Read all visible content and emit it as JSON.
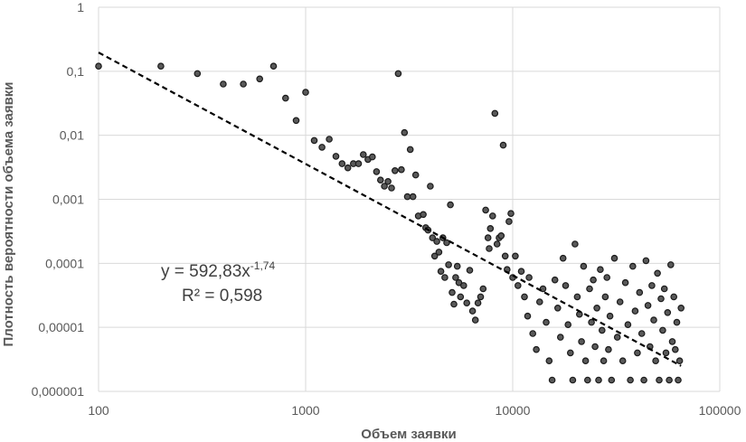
{
  "chart_data": {
    "type": "scatter",
    "xlabel": "Объем заявки",
    "ylabel": "Плотность вероятности объема заявки",
    "x_scale": "log",
    "y_scale": "log",
    "xlim": [
      100,
      100000
    ],
    "ylim": [
      1e-06,
      1
    ],
    "grid": true,
    "x_ticks": [
      "100",
      "1000",
      "10000",
      "100000"
    ],
    "y_ticks": [
      "1",
      "0,1",
      "0,01",
      "0,001",
      "0,0001",
      "0,00001",
      "0,000001"
    ],
    "trendline": {
      "type": "power",
      "a": 592.83,
      "b": -1.74,
      "r2": 0.598,
      "equation_text": "y = 592,83x",
      "exponent_text": "-1,74",
      "r2_text": "R² = 0,598"
    },
    "points": [
      [
        100,
        0.12
      ],
      [
        200,
        0.12
      ],
      [
        300,
        0.092
      ],
      [
        400,
        0.063
      ],
      [
        500,
        0.063
      ],
      [
        600,
        0.076
      ],
      [
        700,
        0.12
      ],
      [
        800,
        0.038
      ],
      [
        900,
        0.017
      ],
      [
        1000,
        0.047
      ],
      [
        1100,
        0.0083
      ],
      [
        1200,
        0.0065
      ],
      [
        1300,
        0.0087
      ],
      [
        1400,
        0.0047
      ],
      [
        1500,
        0.0036
      ],
      [
        1600,
        0.0031
      ],
      [
        1700,
        0.0036
      ],
      [
        1800,
        0.0036
      ],
      [
        1900,
        0.005
      ],
      [
        2000,
        0.0042
      ],
      [
        2100,
        0.0046
      ],
      [
        2200,
        0.0027
      ],
      [
        2300,
        0.002
      ],
      [
        2400,
        0.0016
      ],
      [
        2500,
        0.0019
      ],
      [
        2600,
        0.0015
      ],
      [
        2700,
        0.0028
      ],
      [
        2800,
        0.092
      ],
      [
        2900,
        0.0029
      ],
      [
        3000,
        0.011
      ],
      [
        3100,
        0.0011
      ],
      [
        3200,
        0.006
      ],
      [
        3300,
        0.0011
      ],
      [
        3400,
        0.0024
      ],
      [
        3500,
        0.00055
      ],
      [
        3700,
        0.00058
      ],
      [
        3800,
        0.00036
      ],
      [
        3900,
        0.00033
      ],
      [
        4000,
        0.0016
      ],
      [
        4100,
        0.00025
      ],
      [
        4200,
        0.00013
      ],
      [
        4300,
        0.00022
      ],
      [
        4400,
        0.00015
      ],
      [
        4500,
        7.5e-05
      ],
      [
        4600,
        0.00025
      ],
      [
        4700,
        6e-05
      ],
      [
        4800,
        0.00021
      ],
      [
        4900,
        9.5e-05
      ],
      [
        5000,
        0.00082
      ],
      [
        5100,
        3.5e-05
      ],
      [
        5200,
        2.3e-05
      ],
      [
        5300,
        6e-05
      ],
      [
        5400,
        9e-05
      ],
      [
        5500,
        5e-05
      ],
      [
        5600,
        3e-05
      ],
      [
        5800,
        4.5e-05
      ],
      [
        6000,
        2.4e-05
      ],
      [
        6200,
        7.8e-05
      ],
      [
        6400,
        1.8e-05
      ],
      [
        6600,
        1.3e-05
      ],
      [
        6800,
        2.4e-05
      ],
      [
        7000,
        3e-05
      ],
      [
        7200,
        4e-05
      ],
      [
        7400,
        0.00068
      ],
      [
        7600,
        0.00025
      ],
      [
        7700,
        0.00017
      ],
      [
        7800,
        0.00035
      ],
      [
        8000,
        0.00055
      ],
      [
        8200,
        0.022
      ],
      [
        8400,
        0.0002
      ],
      [
        8600,
        0.00025
      ],
      [
        8800,
        0.00027
      ],
      [
        9000,
        0.007
      ],
      [
        9200,
        0.00013
      ],
      [
        9400,
        8e-05
      ],
      [
        9600,
        0.00045
      ],
      [
        9800,
        0.0006
      ],
      [
        10000,
        6e-05
      ],
      [
        10300,
        0.00013
      ],
      [
        10600,
        4.5e-05
      ],
      [
        11000,
        7.5e-05
      ],
      [
        11400,
        3e-05
      ],
      [
        11800,
        1.5e-05
      ],
      [
        12000,
        6e-05
      ],
      [
        12500,
        8e-06
      ],
      [
        13000,
        4.5e-06
      ],
      [
        13500,
        2.5e-05
      ],
      [
        14000,
        4e-05
      ],
      [
        14500,
        1.2e-05
      ],
      [
        15000,
        3e-06
      ],
      [
        15500,
        1.5e-06
      ],
      [
        16000,
        5.5e-05
      ],
      [
        16500,
        2e-05
      ],
      [
        17000,
        7e-06
      ],
      [
        17500,
        0.00012
      ],
      [
        18000,
        4.5e-05
      ],
      [
        18500,
        1.1e-05
      ],
      [
        19000,
        4e-06
      ],
      [
        19500,
        1.5e-06
      ],
      [
        20000,
        0.0002
      ],
      [
        20500,
        3e-05
      ],
      [
        21000,
        1.6e-05
      ],
      [
        21500,
        6e-06
      ],
      [
        22000,
        9e-05
      ],
      [
        22500,
        3e-06
      ],
      [
        23000,
        1.5e-06
      ],
      [
        23500,
        4e-05
      ],
      [
        24000,
        1.2e-05
      ],
      [
        24500,
        5.5e-05
      ],
      [
        25000,
        5e-06
      ],
      [
        25500,
        2e-05
      ],
      [
        26000,
        1.5e-06
      ],
      [
        26500,
        8e-05
      ],
      [
        27000,
        9e-06
      ],
      [
        27500,
        3e-06
      ],
      [
        28000,
        3e-05
      ],
      [
        28500,
        6e-05
      ],
      [
        29000,
        4.5e-06
      ],
      [
        29500,
        1.5e-05
      ],
      [
        30000,
        1.5e-06
      ],
      [
        31000,
        0.00012
      ],
      [
        32000,
        7e-06
      ],
      [
        33000,
        2.5e-05
      ],
      [
        34000,
        3e-06
      ],
      [
        35000,
        5e-05
      ],
      [
        36000,
        1.1e-05
      ],
      [
        37000,
        1.5e-06
      ],
      [
        38000,
        9e-05
      ],
      [
        39000,
        1.8e-05
      ],
      [
        40000,
        4e-06
      ],
      [
        41000,
        3.5e-05
      ],
      [
        42000,
        8e-06
      ],
      [
        43000,
        1.5e-06
      ],
      [
        44000,
        0.00011
      ],
      [
        45000,
        2.2e-05
      ],
      [
        46000,
        5e-06
      ],
      [
        47000,
        4.5e-05
      ],
      [
        48000,
        1.3e-05
      ],
      [
        49000,
        3e-06
      ],
      [
        50000,
        7e-05
      ],
      [
        51000,
        1.5e-06
      ],
      [
        52000,
        2.8e-05
      ],
      [
        53000,
        9e-06
      ],
      [
        54000,
        4e-05
      ],
      [
        55000,
        4e-06
      ],
      [
        56000,
        1.7e-05
      ],
      [
        57000,
        1.5e-06
      ],
      [
        58000,
        9.5e-05
      ],
      [
        59000,
        6e-06
      ],
      [
        60000,
        3e-05
      ],
      [
        61000,
        4.5e-06
      ],
      [
        62000,
        1.2e-05
      ],
      [
        63000,
        1.5e-06
      ],
      [
        64000,
        3e-06
      ],
      [
        65000,
        2e-05
      ]
    ]
  }
}
